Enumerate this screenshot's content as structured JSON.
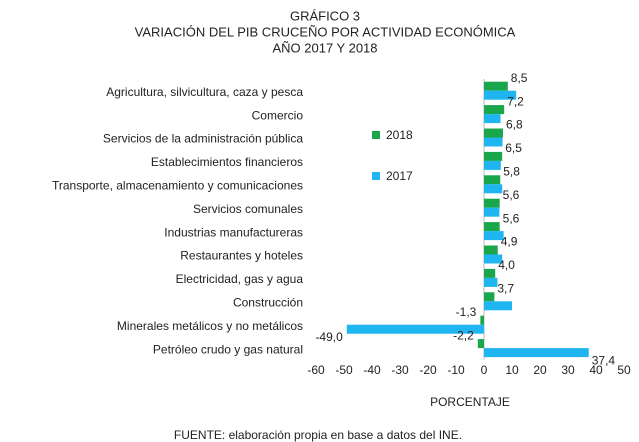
{
  "chart_data": {
    "type": "hbar",
    "title": [
      "GRÁFICO 3",
      "VARIACIÓN DEL PIB CRUCEÑO POR ACTIVIDAD ECONÓMICA",
      "AÑO 2017 Y 2018"
    ],
    "categories": [
      "Agricultura, silvicultura, caza y pesca",
      "Comercio",
      "Servicios de la administración pública",
      "Establecimientos financieros",
      "Transporte, almacenamiento y comunicaciones",
      "Servicios comunales",
      "Industrias manufactureras",
      "Restaurantes y hoteles",
      "Electricidad, gas y agua",
      "Construcción",
      "Minerales metálicos y no metálicos",
      "Petróleo crudo y gas natural"
    ],
    "series": [
      {
        "name": "2018",
        "color": "#1aa64b",
        "values": [
          8.5,
          7.2,
          6.8,
          6.5,
          5.8,
          5.6,
          5.6,
          4.9,
          4.0,
          3.7,
          -1.3,
          -2.2
        ],
        "value_labels": [
          "8,5",
          "7,2",
          "6,8",
          "6,5",
          "5,8",
          "5,6",
          "5,6",
          "4,9",
          "4,0",
          "3,7",
          "-1,3",
          "-2,2"
        ]
      },
      {
        "name": "2017",
        "color": "#1fb5f0",
        "values": [
          11.5,
          5.9,
          6.6,
          6.0,
          6.5,
          5.5,
          7.0,
          6.5,
          4.8,
          10.0,
          -49.0,
          37.4
        ],
        "value_labels": [
          null,
          null,
          null,
          null,
          null,
          null,
          null,
          null,
          null,
          null,
          "-49,0",
          "37,4"
        ]
      }
    ],
    "xlim": [
      -60,
      50
    ],
    "xticks": [
      -60,
      -50,
      -40,
      -30,
      -20,
      -10,
      0,
      10,
      20,
      30,
      40,
      50
    ],
    "xlabel": "PORCENTAJE",
    "legend": "center",
    "source": "FUENTE: elaboración propia en base a datos del INE."
  }
}
